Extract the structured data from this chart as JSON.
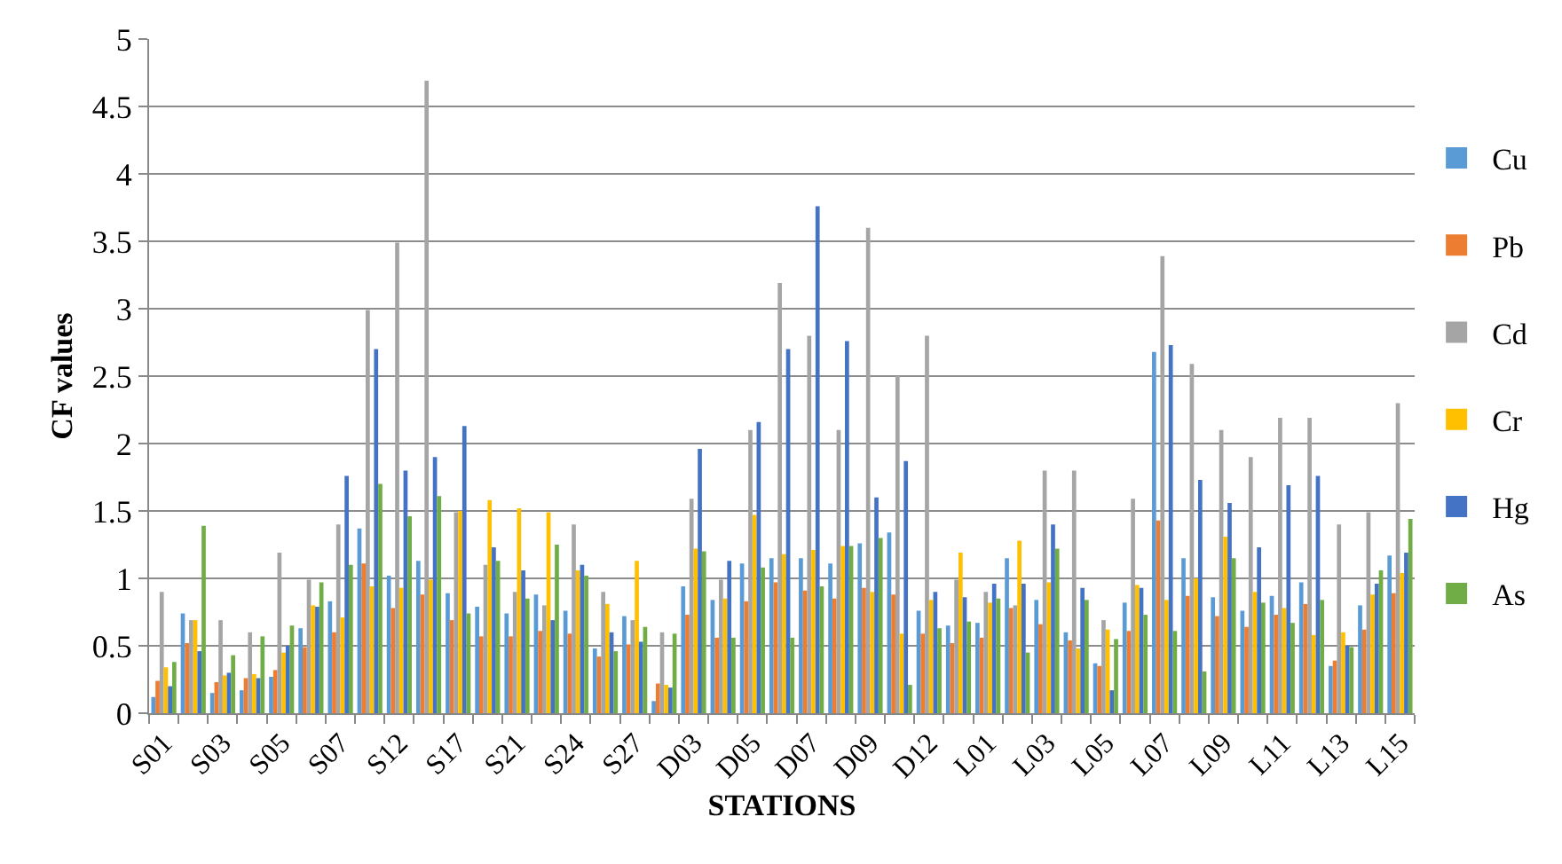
{
  "chart_data": {
    "type": "bar",
    "xlabel": "STATIONS",
    "ylabel": "CF values",
    "categories": [
      "S01",
      null,
      "S03",
      null,
      "S05",
      null,
      "S07",
      null,
      "S12",
      null,
      "S17",
      null,
      "S21",
      null,
      "S24",
      null,
      "S27",
      null,
      "D03",
      null,
      "D05",
      null,
      "D07",
      null,
      "D09",
      null,
      "D12",
      null,
      "L01",
      null,
      "L03",
      null,
      "L05",
      null,
      "L07",
      null,
      "L09",
      null,
      "L11",
      null,
      "L13",
      null,
      "L15"
    ],
    "series": [
      {
        "name": "Cu",
        "color": "#5b9bd5",
        "values": [
          0.12,
          0.74,
          0.15,
          0.17,
          0.27,
          0.63,
          0.83,
          1.37,
          1.02,
          1.13,
          0.89,
          0.79,
          0.74,
          0.88,
          0.76,
          0.48,
          0.72,
          0.09,
          0.94,
          0.84,
          1.11,
          1.15,
          1.15,
          1.11,
          1.26,
          1.34,
          0.76,
          0.65,
          0.67,
          1.15,
          0.84,
          0.6,
          0.37,
          0.82,
          2.68,
          1.15,
          0.86,
          0.76,
          0.87,
          0.97,
          0.35,
          0.8,
          1.17
        ]
      },
      {
        "name": "Pb",
        "color": "#ed7d31",
        "values": [
          0.24,
          0.52,
          0.23,
          0.26,
          0.32,
          0.49,
          0.6,
          1.11,
          0.78,
          0.88,
          0.69,
          0.57,
          0.57,
          0.61,
          0.59,
          0.42,
          0.51,
          0.22,
          0.73,
          0.56,
          0.83,
          0.97,
          0.91,
          0.85,
          0.93,
          0.88,
          0.59,
          0.52,
          0.56,
          0.78,
          0.66,
          0.54,
          0.35,
          0.61,
          1.43,
          0.87,
          0.72,
          0.64,
          0.73,
          0.81,
          0.39,
          0.62,
          0.89
        ]
      },
      {
        "name": "Cd",
        "color": "#a5a5a5",
        "values": [
          0.9,
          0.69,
          0.69,
          0.6,
          1.19,
          0.99,
          1.4,
          2.99,
          3.49,
          4.69,
          1.49,
          1.1,
          0.9,
          0.8,
          1.4,
          0.9,
          0.69,
          0.6,
          1.59,
          0.99,
          2.1,
          3.19,
          2.8,
          2.1,
          3.6,
          2.5,
          2.8,
          0.99,
          0.9,
          0.8,
          1.8,
          1.8,
          0.69,
          1.59,
          3.39,
          2.59,
          2.1,
          1.9,
          2.19,
          2.19,
          1.4,
          1.49,
          2.3
        ]
      },
      {
        "name": "Cr",
        "color": "#ffc000",
        "values": [
          0.34,
          0.69,
          0.28,
          0.29,
          0.45,
          0.8,
          0.71,
          0.94,
          0.93,
          0.99,
          1.5,
          1.58,
          1.52,
          1.49,
          1.06,
          0.81,
          1.13,
          0.21,
          1.22,
          0.85,
          1.47,
          1.18,
          1.21,
          1.24,
          0.9,
          0.59,
          0.84,
          1.19,
          0.82,
          1.28,
          0.97,
          0.48,
          0.62,
          0.95,
          0.84,
          1.0,
          1.31,
          0.9,
          0.78,
          0.58,
          0.6,
          0.88,
          1.04
        ]
      },
      {
        "name": "Hg",
        "color": "#4472c4",
        "values": [
          0.2,
          0.46,
          0.3,
          0.26,
          0.5,
          0.79,
          1.76,
          2.7,
          1.8,
          1.9,
          2.13,
          1.23,
          1.06,
          0.69,
          1.1,
          0.6,
          0.53,
          0.19,
          1.96,
          1.13,
          2.16,
          2.7,
          3.76,
          2.76,
          1.6,
          1.87,
          0.9,
          0.86,
          0.96,
          0.96,
          1.4,
          0.93,
          0.17,
          0.93,
          2.73,
          1.73,
          1.56,
          1.23,
          1.69,
          1.76,
          0.5,
          0.96,
          1.19
        ]
      },
      {
        "name": "As",
        "color": "#70ad47",
        "values": [
          0.38,
          1.39,
          0.43,
          0.57,
          0.65,
          0.97,
          1.1,
          1.7,
          1.46,
          1.61,
          0.74,
          1.13,
          0.85,
          1.25,
          1.02,
          0.46,
          0.64,
          0.59,
          1.2,
          0.56,
          1.08,
          0.56,
          0.94,
          1.24,
          1.3,
          0.21,
          0.63,
          0.68,
          0.85,
          0.45,
          1.22,
          0.84,
          0.55,
          0.73,
          0.61,
          0.31,
          1.15,
          0.82,
          0.67,
          0.84,
          0.49,
          1.06,
          1.44
        ]
      }
    ],
    "ylim": [
      0,
      5
    ],
    "yticks": [
      0,
      0.5,
      1,
      1.5,
      2,
      2.5,
      3,
      3.5,
      4,
      4.5,
      5
    ],
    "grid": "y",
    "legend": "right"
  }
}
